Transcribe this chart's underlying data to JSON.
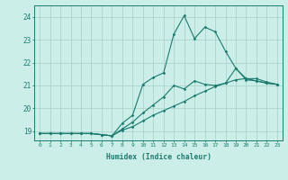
{
  "xlabel": "Humidex (Indice chaleur)",
  "bg_color": "#cceee8",
  "grid_color": "#aad4cc",
  "line_color": "#1a7a6e",
  "xlim": [
    -0.5,
    23.5
  ],
  "ylim": [
    18.6,
    24.5
  ],
  "xticks": [
    0,
    1,
    2,
    3,
    4,
    5,
    6,
    7,
    8,
    9,
    10,
    11,
    12,
    13,
    14,
    15,
    16,
    17,
    18,
    19,
    20,
    21,
    22,
    23
  ],
  "yticks": [
    19,
    20,
    21,
    22,
    23,
    24
  ],
  "line1_x": [
    0,
    1,
    2,
    3,
    4,
    5,
    6,
    7,
    8,
    9,
    10,
    11,
    12,
    13,
    14,
    15,
    16,
    17,
    18,
    19,
    20,
    21,
    22,
    23
  ],
  "line1_y": [
    18.9,
    18.9,
    18.9,
    18.9,
    18.9,
    18.9,
    18.85,
    18.8,
    19.05,
    19.2,
    19.45,
    19.7,
    19.9,
    20.1,
    20.3,
    20.55,
    20.75,
    20.95,
    21.1,
    21.25,
    21.3,
    21.3,
    21.15,
    21.05
  ],
  "line2_x": [
    0,
    1,
    2,
    3,
    4,
    5,
    6,
    7,
    8,
    9,
    10,
    11,
    12,
    13,
    14,
    15,
    16,
    17,
    18,
    19,
    20,
    21,
    22,
    23
  ],
  "line2_y": [
    18.9,
    18.9,
    18.9,
    18.9,
    18.9,
    18.9,
    18.85,
    18.8,
    19.1,
    19.4,
    19.8,
    20.15,
    20.5,
    21.0,
    20.85,
    21.2,
    21.05,
    21.0,
    21.1,
    21.75,
    21.25,
    21.2,
    21.1,
    21.05
  ],
  "line3_x": [
    0,
    1,
    2,
    3,
    4,
    5,
    6,
    7,
    8,
    9,
    10,
    11,
    12,
    13,
    14,
    15,
    16,
    17,
    18,
    19,
    20,
    21,
    22,
    23
  ],
  "line3_y": [
    18.9,
    18.9,
    18.9,
    18.9,
    18.9,
    18.9,
    18.85,
    18.8,
    19.35,
    19.7,
    21.05,
    21.35,
    21.55,
    23.25,
    24.05,
    23.05,
    23.55,
    23.35,
    22.5,
    21.75,
    21.3,
    21.2,
    21.1,
    21.05
  ]
}
